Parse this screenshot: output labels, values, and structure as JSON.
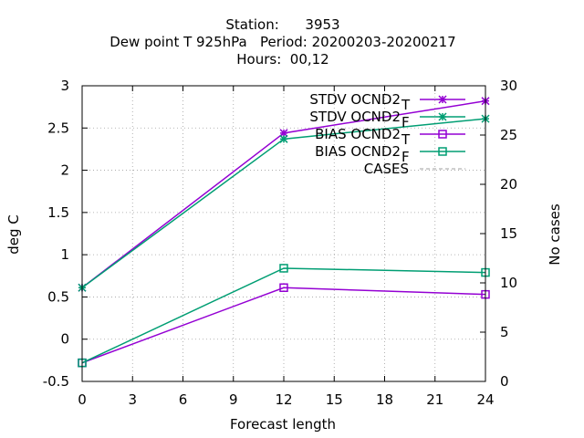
{
  "chart_data": {
    "type": "line",
    "title_lines": [
      "Station:      3953",
      "Dew point T 925hPa   Period: 20200203-20200217",
      "Hours:  00,12"
    ],
    "xlabel": "Forecast length",
    "ylabel": "deg C",
    "y2label": "No cases",
    "xlim": [
      0,
      24
    ],
    "ylim": [
      -0.5,
      3
    ],
    "y2lim": [
      0,
      30
    ],
    "x_ticks": [
      "0",
      "3",
      "6",
      "9",
      "12",
      "15",
      "18",
      "21",
      "24"
    ],
    "y_ticks": [
      "-0.5",
      "0",
      "0.5",
      "1",
      "1.5",
      "2",
      "2.5",
      "3"
    ],
    "y2_ticks": [
      "0",
      "5",
      "10",
      "15",
      "20",
      "25",
      "30"
    ],
    "grid": true,
    "legend_position": "top-right",
    "series": [
      {
        "name": "STDV OCND2",
        "subscript": "T",
        "color": "#9400d3",
        "marker": "star",
        "axis": "y",
        "x": [
          0,
          12,
          24
        ],
        "values": [
          0.61,
          2.44,
          2.82
        ]
      },
      {
        "name": "STDV OCND2",
        "subscript": "F",
        "color": "#009e73",
        "marker": "star",
        "axis": "y",
        "x": [
          0,
          12,
          24
        ],
        "values": [
          0.61,
          2.37,
          2.61
        ]
      },
      {
        "name": "BIAS OCND2",
        "subscript": "T",
        "color": "#9400d3",
        "marker": "square",
        "axis": "y",
        "x": [
          0,
          12,
          24
        ],
        "values": [
          -0.28,
          0.61,
          0.53
        ]
      },
      {
        "name": "BIAS OCND2",
        "subscript": "F",
        "color": "#009e73",
        "marker": "square",
        "axis": "y",
        "x": [
          0,
          12,
          24
        ],
        "values": [
          -0.28,
          0.84,
          0.79
        ]
      },
      {
        "name": "CASES",
        "subscript": "",
        "color": "#a0a0a0",
        "marker": "none",
        "axis": "y2",
        "dashed": true,
        "x": [
          0,
          12,
          24
        ],
        "values": [
          30,
          30,
          30
        ]
      }
    ]
  }
}
